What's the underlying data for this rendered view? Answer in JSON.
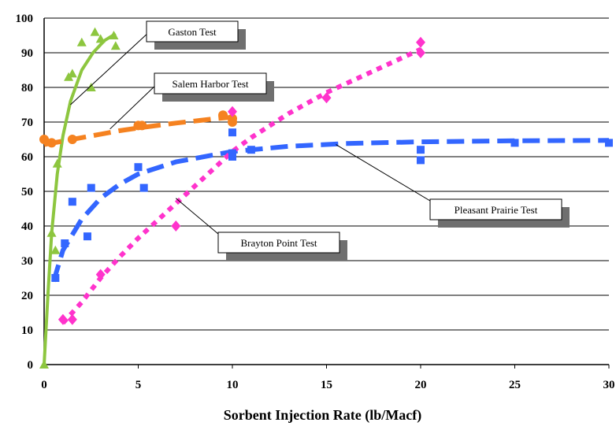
{
  "chart_data": {
    "type": "scatter",
    "title": "",
    "xlabel": "Sorbent Injection Rate (lb/Macf)",
    "ylabel": "",
    "xlim": [
      0,
      30
    ],
    "ylim": [
      0,
      100
    ],
    "x_ticks": [
      "0",
      "5",
      "10",
      "15",
      "20",
      "25",
      "30"
    ],
    "y_ticks": [
      "0",
      "10",
      "20",
      "30",
      "40",
      "50",
      "60",
      "70",
      "80",
      "90",
      "100"
    ],
    "grid": "horizontal",
    "series": [
      {
        "name": "Gaston Test",
        "color": "#8DC63F",
        "marker": "triangle",
        "line_style": "solid",
        "points": [
          [
            0,
            0
          ],
          [
            0.4,
            38
          ],
          [
            0.6,
            33
          ],
          [
            0.7,
            58
          ],
          [
            1.3,
            83
          ],
          [
            1.5,
            84
          ],
          [
            2.0,
            93
          ],
          [
            2.5,
            80
          ],
          [
            2.7,
            96
          ],
          [
            3.0,
            94
          ],
          [
            3.7,
            95
          ],
          [
            3.8,
            92
          ]
        ],
        "trend": [
          [
            0,
            0
          ],
          [
            0.2,
            20
          ],
          [
            0.4,
            38
          ],
          [
            0.7,
            55
          ],
          [
            1.0,
            66
          ],
          [
            1.4,
            76
          ],
          [
            2.0,
            85
          ],
          [
            2.6,
            90
          ],
          [
            3.2,
            93.5
          ],
          [
            3.8,
            95.5
          ]
        ]
      },
      {
        "name": "Salem Harbor Test",
        "color": "#F58220",
        "marker": "circle",
        "line_style": "dashed",
        "points": [
          [
            0,
            65
          ],
          [
            0.4,
            64
          ],
          [
            1.5,
            65
          ],
          [
            5,
            69
          ],
          [
            5.2,
            69
          ],
          [
            9.5,
            72
          ],
          [
            10,
            71
          ],
          [
            10,
            70
          ]
        ],
        "trend": [
          [
            0,
            63.5
          ],
          [
            1,
            64.5
          ],
          [
            2,
            65.5
          ],
          [
            3,
            66.5
          ],
          [
            4,
            67.5
          ],
          [
            5,
            68.3
          ],
          [
            6,
            69
          ],
          [
            7,
            69.7
          ],
          [
            8,
            70.3
          ],
          [
            9,
            70.9
          ],
          [
            10,
            71.4
          ]
        ]
      },
      {
        "name": "Pleasant Prairie Test",
        "color": "#3366FF",
        "marker": "square",
        "line_style": "dashed",
        "points": [
          [
            0.6,
            25
          ],
          [
            1.1,
            35
          ],
          [
            1.5,
            47
          ],
          [
            2.3,
            37
          ],
          [
            2.5,
            51
          ],
          [
            5,
            57
          ],
          [
            5.3,
            51
          ],
          [
            10,
            61
          ],
          [
            10,
            60
          ],
          [
            10,
            67
          ],
          [
            11,
            62
          ],
          [
            20,
            62
          ],
          [
            20,
            59
          ],
          [
            25,
            64
          ],
          [
            30,
            64
          ]
        ],
        "trend": [
          [
            0.5,
            24
          ],
          [
            1,
            33
          ],
          [
            2,
            42
          ],
          [
            3,
            48
          ],
          [
            4,
            52
          ],
          [
            5,
            55
          ],
          [
            7,
            58.5
          ],
          [
            10,
            61.5
          ],
          [
            13,
            63
          ],
          [
            16,
            63.8
          ],
          [
            20,
            64.3
          ],
          [
            25,
            64.6
          ],
          [
            30,
            64.7
          ]
        ]
      },
      {
        "name": "Brayton Point Test",
        "color": "#FF33CC",
        "marker": "diamond",
        "line_style": "dotted",
        "points": [
          [
            1,
            13
          ],
          [
            1.5,
            13
          ],
          [
            3,
            26
          ],
          [
            7,
            40
          ],
          [
            10,
            73
          ],
          [
            15,
            77
          ],
          [
            20,
            93
          ],
          [
            20,
            90
          ]
        ],
        "trend": [
          [
            1,
            12
          ],
          [
            2,
            18
          ],
          [
            3,
            25
          ],
          [
            4,
            31
          ],
          [
            5,
            36.5
          ],
          [
            6,
            41.5
          ],
          [
            7,
            46.5
          ],
          [
            8,
            51.5
          ],
          [
            9,
            56.5
          ],
          [
            10,
            61.5
          ],
          [
            11,
            65.5
          ],
          [
            12,
            69
          ],
          [
            13,
            72.5
          ],
          [
            14,
            75.5
          ],
          [
            15,
            78.5
          ],
          [
            16,
            81
          ],
          [
            17,
            83.5
          ],
          [
            18,
            86
          ],
          [
            19,
            88.5
          ],
          [
            20,
            91
          ]
        ]
      }
    ],
    "callouts": [
      {
        "text": "Gaston Test",
        "series": 0,
        "anchor": [
          1.4,
          75
        ]
      },
      {
        "text": "Salem Harbor Test",
        "series": 1,
        "anchor": [
          3.5,
          68
        ]
      },
      {
        "text": "Pleasant Prairie Test",
        "series": 2,
        "anchor": [
          15.5,
          63.5
        ]
      },
      {
        "text": "Brayton Point Test",
        "series": 3,
        "anchor": [
          7,
          48
        ]
      }
    ]
  }
}
